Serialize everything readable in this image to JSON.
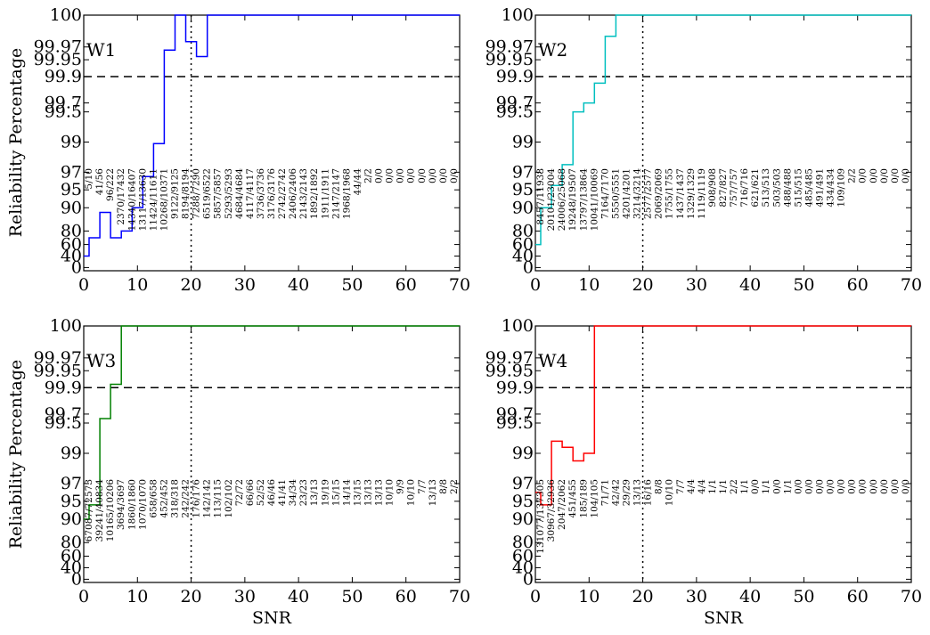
{
  "figure": {
    "ylabel": "Reliability Percentage",
    "xlabel": "SNR",
    "y_tick_labels": [
      "0",
      "40",
      "60",
      "80",
      "90",
      "95",
      "97",
      "99",
      "99.5",
      "99.7",
      "99.9",
      "99.95",
      "99.97",
      "100"
    ],
    "x_tick_labels": [
      "0",
      "10",
      "20",
      "30",
      "40",
      "50",
      "60",
      "70"
    ],
    "colors": {
      "W1": "#0000ff",
      "W2": "#00bfbf",
      "W3": "#008000",
      "W4": "#ff0000"
    }
  },
  "chart_data": [
    {
      "type": "line",
      "title": "W1",
      "xlabel": "",
      "ylabel": "Reliability Percentage",
      "xlim": [
        0,
        70
      ],
      "y_scale": "nonlinear (ticks 0,40,60,80,90,95,97,99,99.5,99.7,99.9,99.95,99.97,100)",
      "hline_y": 99.9,
      "vline_x": 20,
      "series": [
        {
          "x": [
            0,
            1,
            3,
            5,
            7,
            9,
            11,
            13,
            15,
            17,
            19,
            21,
            23,
            70
          ],
          "y": [
            40,
            70,
            88,
            70,
            80,
            90,
            96.5,
            98.9,
            99.965,
            100,
            99.975,
            99.955,
            100,
            100
          ]
        }
      ],
      "annotations": [
        "5/10",
        "41/56",
        "96/222",
        "2370/17432",
        "14340/16407",
        "13117/13630",
        "11424/11611",
        "10268/10371",
        "9122/9125",
        "8194/8194",
        "7288/7290",
        "6519/6522",
        "5857/5857",
        "5293/5293",
        "4684/4684",
        "4117/4117",
        "3736/3736",
        "3176/3176",
        "2742/2742",
        "2406/2406",
        "2143/2143",
        "1892/1892",
        "1911/1911",
        "2147/2147",
        "1968/1968",
        "44/44",
        "2/2",
        "0/0",
        "0/0",
        "0/0",
        "0/0",
        "0/0",
        "0/0",
        "0/0",
        "0/0"
      ]
    },
    {
      "type": "line",
      "title": "W2",
      "xlabel": "",
      "ylabel": "",
      "xlim": [
        0,
        70
      ],
      "hline_y": 99.9,
      "vline_x": 20,
      "series": [
        {
          "x": [
            0,
            1,
            3,
            5,
            7,
            9,
            11,
            13,
            15,
            70
          ],
          "y": [
            60,
            90,
            95.5,
            97.5,
            99.5,
            99.7,
            99.85,
            99.98,
            100,
            100
          ]
        }
      ],
      "annotations": [
        "8457/11938",
        "20101/23004",
        "24006/25068",
        "19248/19507",
        "13797/13864",
        "10041/10069",
        "7164/7170",
        "5550/5551",
        "4201/4201",
        "3214/3214",
        "2577/2577",
        "2069/2069",
        "1755/1755",
        "1437/1437",
        "1329/1329",
        "1119/1119",
        "908/908",
        "827/827",
        "757/757",
        "716/716",
        "621/621",
        "513/513",
        "503/503",
        "488/488",
        "515/515",
        "485/485",
        "491/491",
        "434/434",
        "109/109",
        "2/2",
        "0/0",
        "0/0",
        "0/0",
        "0/0",
        "0/0"
      ]
    },
    {
      "type": "line",
      "title": "W3",
      "xlabel": "SNR",
      "ylabel": "Reliability Percentage",
      "xlim": [
        0,
        70
      ],
      "hline_y": 99.9,
      "vline_x": 20,
      "series": [
        {
          "x": [
            0,
            1,
            3,
            5,
            7,
            70
          ],
          "y": [
            90,
            94,
            99.6,
            99.91,
            100,
            100
          ]
        }
      ],
      "annotations": [
        "67087/72573",
        "39241/40834",
        "10165/10206",
        "3694/3697",
        "1860/1860",
        "1070/1070",
        "658/658",
        "452/452",
        "318/318",
        "242/242",
        "176/176",
        "142/142",
        "113/115",
        "102/102",
        "72/72",
        "66/66",
        "52/52",
        "46/46",
        "41/41",
        "34/34",
        "23/23",
        "13/13",
        "19/19",
        "15/15",
        "14/14",
        "13/15",
        "13/13",
        "13/13",
        "10/10",
        "9/9",
        "10/10",
        "7/7",
        "13/13",
        "8/8",
        "2/2"
      ]
    },
    {
      "type": "line",
      "title": "W4",
      "xlabel": "SNR",
      "ylabel": "",
      "xlim": [
        0,
        70
      ],
      "hline_y": 99.9,
      "vline_x": 20,
      "series": [
        {
          "x": [
            0,
            1,
            3,
            5,
            7,
            9,
            11,
            70
          ],
          "y": [
            96,
            94,
            99.2,
            99.1,
            98.5,
            99,
            100,
            100
          ]
        }
      ],
      "annotations": [
        "131077/137305",
        "30967/32936",
        "2047/2062",
        "451/455",
        "185/189",
        "104/105",
        "71/71",
        "42/42",
        "29/29",
        "13/13",
        "16/16",
        "8/8",
        "10/10",
        "7/7",
        "4/4",
        "4/4",
        "1/1",
        "1/1",
        "2/2",
        "1/1",
        "0/0",
        "1/1",
        "0/0",
        "1/1",
        "0/0",
        "0/0",
        "0/0",
        "0/0",
        "0/0",
        "0/0",
        "0/0",
        "0/0",
        "0/0",
        "0/0",
        "0/0"
      ]
    }
  ]
}
